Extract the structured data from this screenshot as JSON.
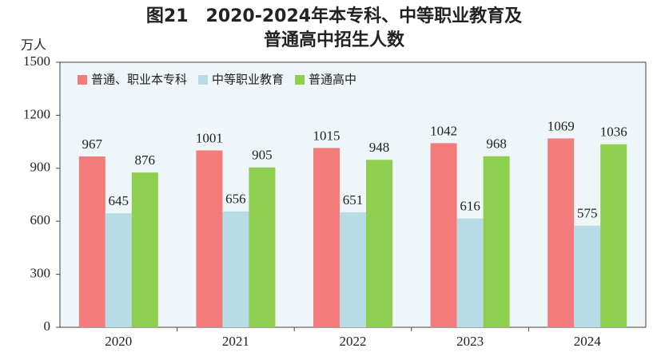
{
  "chart_data": {
    "type": "bar",
    "title": [
      "图21　2020-2024年本专科、中等职业教育及",
      "普通高中招生人数"
    ],
    "y_unit": "万人",
    "categories": [
      "2020",
      "2021",
      "2022",
      "2023",
      "2024"
    ],
    "series": [
      {
        "name": "普通、职业本专科",
        "color": "#f47b7b",
        "values": [
          967,
          1001,
          1015,
          1042,
          1069
        ]
      },
      {
        "name": "中等职业教育",
        "color": "#b7dce6",
        "values": [
          645,
          656,
          651,
          616,
          575
        ]
      },
      {
        "name": "普通高中",
        "color": "#8fcf4f",
        "values": [
          876,
          905,
          948,
          968,
          1036
        ]
      }
    ],
    "ylim": [
      0,
      1500
    ],
    "yticks": [
      0,
      300,
      600,
      900,
      1200,
      1500
    ],
    "legend": "top-left"
  }
}
